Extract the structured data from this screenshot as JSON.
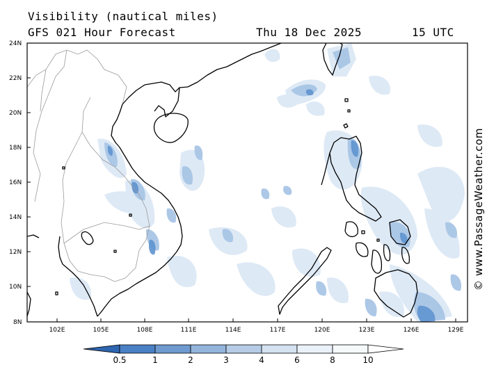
{
  "header": {
    "title": "Visibility (nautical miles)",
    "model": "GFS 021 Hour Forecast",
    "date": "Thu 18 Dec 2025",
    "time": "15 UTC"
  },
  "credit": "© www.PassageWeather.com",
  "map": {
    "lat_labels": [
      "24N",
      "22N",
      "20N",
      "18N",
      "16N",
      "14N",
      "12N",
      "10N",
      "8N"
    ],
    "lon_labels": [
      "102E",
      "105E",
      "108E",
      "111E",
      "114E",
      "117E",
      "120E",
      "123E",
      "126E",
      "129E"
    ],
    "colors": {
      "land_outline": "#000000",
      "borders": "#9a9a9a",
      "fog_light": "#dce8f5",
      "fog_medium": "#a9c6e6",
      "fog_dark": "#5f93cf"
    }
  },
  "legend": {
    "labels": [
      "0.5",
      "1",
      "2",
      "3",
      "4",
      "6",
      "8",
      "10"
    ],
    "colors": [
      "#2e66b0",
      "#4a80c4",
      "#6e9ad0",
      "#93b5dc",
      "#b6cce6",
      "#d4e2f1",
      "#eaf1f8",
      "#ffffff"
    ]
  }
}
